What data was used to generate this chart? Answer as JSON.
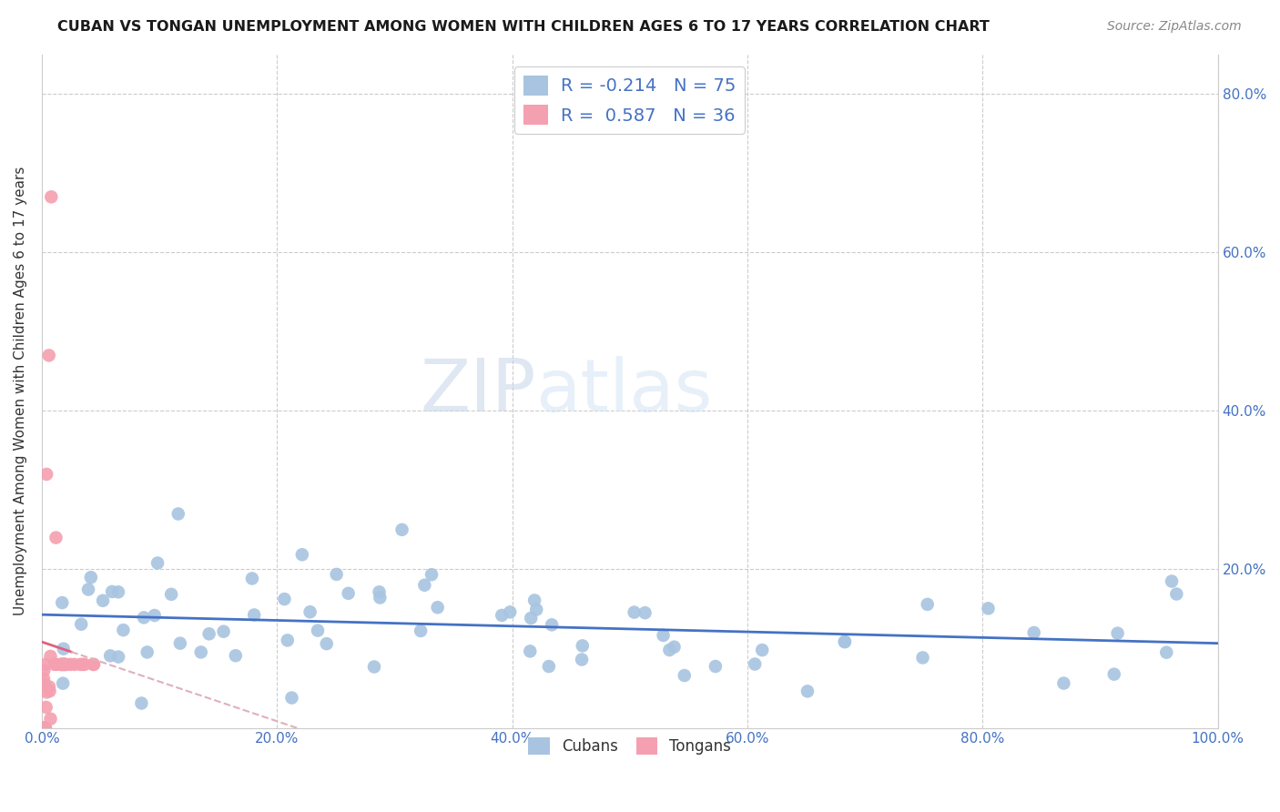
{
  "title": "CUBAN VS TONGAN UNEMPLOYMENT AMONG WOMEN WITH CHILDREN AGES 6 TO 17 YEARS CORRELATION CHART",
  "source": "Source: ZipAtlas.com",
  "ylabel": "Unemployment Among Women with Children Ages 6 to 17 years",
  "xlim": [
    0.0,
    1.0
  ],
  "ylim": [
    0.0,
    0.85
  ],
  "cuban_color": "#a8c4e0",
  "tongan_color": "#f4a0b0",
  "cuban_line_color": "#4472c4",
  "tongan_line_color": "#e06080",
  "tongan_line_dashed_color": "#e0b0bc",
  "legend_R_cuban": "-0.214",
  "legend_N_cuban": "75",
  "legend_R_tongan": "0.587",
  "legend_N_tongan": "36",
  "watermark_zip": "ZIP",
  "watermark_atlas": "atlas",
  "right_ytick_labels": [
    "",
    "20.0%",
    "40.0%",
    "60.0%",
    "80.0%"
  ],
  "bottom_xtick_labels": [
    "0.0%",
    "20.0%",
    "40.0%",
    "60.0%",
    "80.0%",
    "100.0%"
  ]
}
